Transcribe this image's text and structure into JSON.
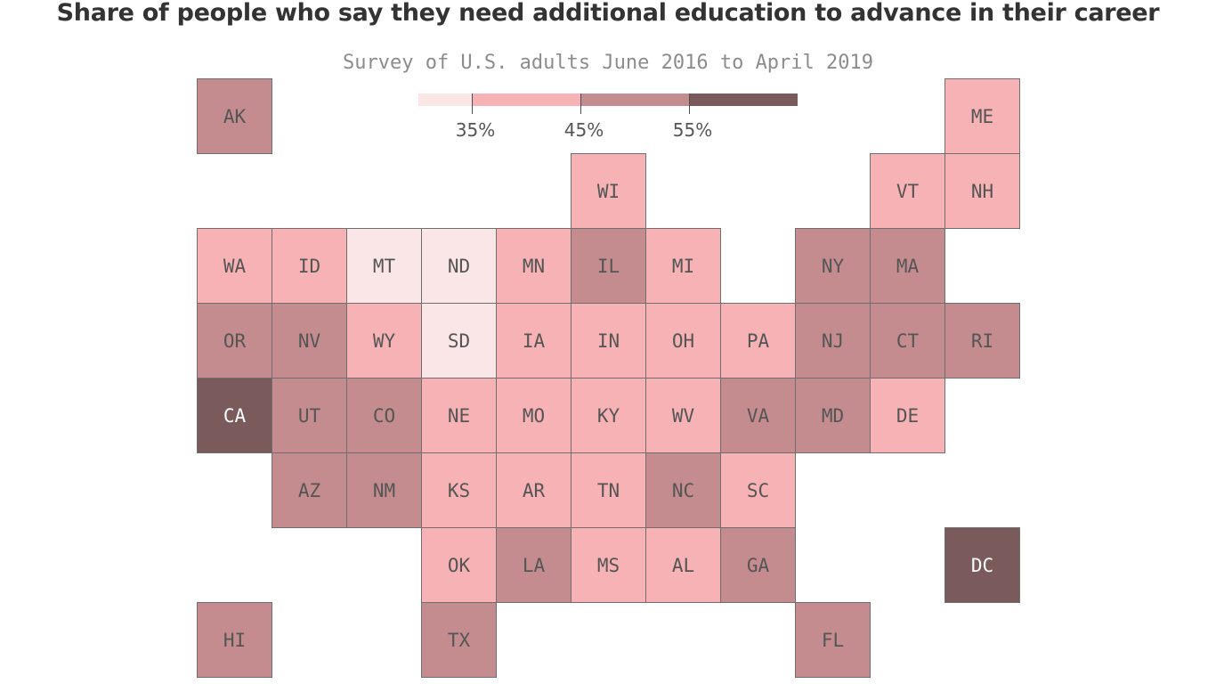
{
  "title": "Share of people who say they need additional education to advance in their career",
  "subtitle": "Survey of U.S. adults June 2016 to April 2019",
  "colors": {
    "lt35": "#fbe6e7",
    "c35_45": "#f6b2b5",
    "c45_55": "#c48c8f",
    "ge55": "#7a5a5b",
    "border": "#6f6f6f",
    "text_dark": "#555555",
    "text_light": "#ffffff"
  },
  "legend": {
    "ticks": [
      "35%",
      "45%",
      "55%"
    ]
  },
  "map_data": {
    "type": "tile-grid-choropleth",
    "bins": [
      "<35%",
      "35–45%",
      "45–55%",
      ">55%"
    ],
    "states": [
      {
        "abbr": "AK",
        "col": 0,
        "row": 0,
        "bin": 2
      },
      {
        "abbr": "ME",
        "col": 10,
        "row": 0,
        "bin": 1
      },
      {
        "abbr": "WI",
        "col": 5,
        "row": 1,
        "bin": 1
      },
      {
        "abbr": "VT",
        "col": 9,
        "row": 1,
        "bin": 1
      },
      {
        "abbr": "NH",
        "col": 10,
        "row": 1,
        "bin": 1
      },
      {
        "abbr": "WA",
        "col": 0,
        "row": 2,
        "bin": 1
      },
      {
        "abbr": "ID",
        "col": 1,
        "row": 2,
        "bin": 1
      },
      {
        "abbr": "MT",
        "col": 2,
        "row": 2,
        "bin": 0
      },
      {
        "abbr": "ND",
        "col": 3,
        "row": 2,
        "bin": 0
      },
      {
        "abbr": "MN",
        "col": 4,
        "row": 2,
        "bin": 1
      },
      {
        "abbr": "IL",
        "col": 5,
        "row": 2,
        "bin": 2
      },
      {
        "abbr": "MI",
        "col": 6,
        "row": 2,
        "bin": 1
      },
      {
        "abbr": "NY",
        "col": 8,
        "row": 2,
        "bin": 2
      },
      {
        "abbr": "MA",
        "col": 9,
        "row": 2,
        "bin": 2
      },
      {
        "abbr": "OR",
        "col": 0,
        "row": 3,
        "bin": 2
      },
      {
        "abbr": "NV",
        "col": 1,
        "row": 3,
        "bin": 2
      },
      {
        "abbr": "WY",
        "col": 2,
        "row": 3,
        "bin": 1
      },
      {
        "abbr": "SD",
        "col": 3,
        "row": 3,
        "bin": 0
      },
      {
        "abbr": "IA",
        "col": 4,
        "row": 3,
        "bin": 1
      },
      {
        "abbr": "IN",
        "col": 5,
        "row": 3,
        "bin": 1
      },
      {
        "abbr": "OH",
        "col": 6,
        "row": 3,
        "bin": 1
      },
      {
        "abbr": "PA",
        "col": 7,
        "row": 3,
        "bin": 1
      },
      {
        "abbr": "NJ",
        "col": 8,
        "row": 3,
        "bin": 2
      },
      {
        "abbr": "CT",
        "col": 9,
        "row": 3,
        "bin": 2
      },
      {
        "abbr": "RI",
        "col": 10,
        "row": 3,
        "bin": 2
      },
      {
        "abbr": "CA",
        "col": 0,
        "row": 4,
        "bin": 3
      },
      {
        "abbr": "UT",
        "col": 1,
        "row": 4,
        "bin": 2
      },
      {
        "abbr": "CO",
        "col": 2,
        "row": 4,
        "bin": 2
      },
      {
        "abbr": "NE",
        "col": 3,
        "row": 4,
        "bin": 1
      },
      {
        "abbr": "MO",
        "col": 4,
        "row": 4,
        "bin": 1
      },
      {
        "abbr": "KY",
        "col": 5,
        "row": 4,
        "bin": 1
      },
      {
        "abbr": "WV",
        "col": 6,
        "row": 4,
        "bin": 1
      },
      {
        "abbr": "VA",
        "col": 7,
        "row": 4,
        "bin": 2
      },
      {
        "abbr": "MD",
        "col": 8,
        "row": 4,
        "bin": 2
      },
      {
        "abbr": "DE",
        "col": 9,
        "row": 4,
        "bin": 1
      },
      {
        "abbr": "AZ",
        "col": 1,
        "row": 5,
        "bin": 2
      },
      {
        "abbr": "NM",
        "col": 2,
        "row": 5,
        "bin": 2
      },
      {
        "abbr": "KS",
        "col": 3,
        "row": 5,
        "bin": 1
      },
      {
        "abbr": "AR",
        "col": 4,
        "row": 5,
        "bin": 1
      },
      {
        "abbr": "TN",
        "col": 5,
        "row": 5,
        "bin": 1
      },
      {
        "abbr": "NC",
        "col": 6,
        "row": 5,
        "bin": 2
      },
      {
        "abbr": "SC",
        "col": 7,
        "row": 5,
        "bin": 1
      },
      {
        "abbr": "OK",
        "col": 3,
        "row": 6,
        "bin": 1
      },
      {
        "abbr": "LA",
        "col": 4,
        "row": 6,
        "bin": 2
      },
      {
        "abbr": "MS",
        "col": 5,
        "row": 6,
        "bin": 1
      },
      {
        "abbr": "AL",
        "col": 6,
        "row": 6,
        "bin": 1
      },
      {
        "abbr": "GA",
        "col": 7,
        "row": 6,
        "bin": 2
      },
      {
        "abbr": "DC",
        "col": 10,
        "row": 6,
        "bin": 3
      },
      {
        "abbr": "HI",
        "col": 0,
        "row": 7,
        "bin": 2
      },
      {
        "abbr": "TX",
        "col": 3,
        "row": 7,
        "bin": 2
      },
      {
        "abbr": "FL",
        "col": 8,
        "row": 7,
        "bin": 2
      }
    ]
  }
}
